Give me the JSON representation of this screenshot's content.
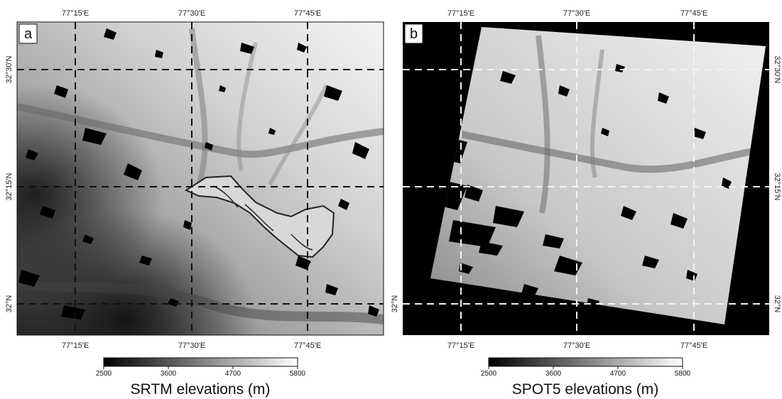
{
  "panels": [
    {
      "letter": "a",
      "top_ticks": [
        "77°15'E",
        "77°30'E",
        "77°45'E"
      ],
      "bottom_ticks": [
        "77°15'E",
        "77°30'E",
        "77°45'E"
      ],
      "lat_ticks": [
        "32°30'N",
        "32°15'N",
        "32°N"
      ],
      "lat_side": "left",
      "colorbar": {
        "ticks": [
          "2500",
          "3600",
          "4700",
          "5800"
        ],
        "title": "SRTM elevations (m)"
      }
    },
    {
      "letter": "b",
      "top_ticks": [
        "77°15'E",
        "77°30'E",
        "77°45'E"
      ],
      "bottom_ticks": [
        "77°15'E",
        "77°30'E",
        "77°45'E"
      ],
      "lat_ticks": [
        "32°30'N",
        "32°15'N",
        "32°N"
      ],
      "lat_side": "right",
      "colorbar": {
        "ticks": [
          "2500",
          "3600",
          "4700",
          "5800"
        ],
        "title": "SPOT5 elevations (m)"
      }
    }
  ],
  "colors": {
    "low": "#000000",
    "high": "#ffffff",
    "grid_a": "#111111",
    "grid_b": "#f2f2f2",
    "outline": "#222222"
  }
}
